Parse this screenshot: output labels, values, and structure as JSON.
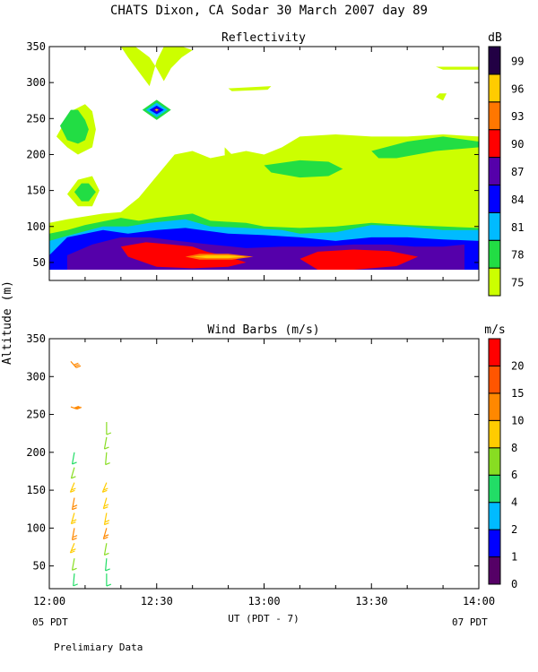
{
  "page": {
    "title": "CHATS Dixon, CA  Sodar  30 March 2007  day  89",
    "ylabel": "Altitude (m)",
    "xlabel": "UT  (PDT - 7)",
    "left_date": "05 PDT",
    "right_date": "07 PDT",
    "footnote": "Prelimiary Data"
  },
  "colors": {
    "refl_levels": [
      "#ccff00",
      "#22dd44",
      "#00bbff",
      "#0000ff",
      "#5500aa",
      "#ff0000",
      "#ff7700",
      "#ffcc00",
      "#220044"
    ],
    "wind_levels": [
      "#550066",
      "#0000ff",
      "#00bbff",
      "#22dd66",
      "#88dd22",
      "#ffcc00",
      "#ff8800",
      "#ff5500",
      "#ff0000"
    ]
  },
  "chart_data": [
    {
      "type": "heatmap",
      "title": "Reflectivity",
      "x_ticks": [
        "12:00",
        "12:30",
        "13:00",
        "13:30",
        "14:00"
      ],
      "xlim": [
        "12:00",
        "14:00"
      ],
      "y_ticks": [
        50,
        100,
        150,
        200,
        250,
        300,
        350
      ],
      "ylim": [
        25,
        350
      ],
      "colorbar": {
        "unit": "dB",
        "levels": [
          75,
          78,
          81,
          84,
          87,
          90,
          93,
          96,
          99
        ]
      },
      "contours": [
        {
          "level": 75,
          "regions": [
            {
              "t": [
                0,
                0,
                5,
                15,
                20,
                25,
                30,
                35,
                40,
                45,
                50,
                55,
                60,
                65,
                70,
                80,
                90,
                100,
                110,
                120,
                120
              ],
              "alt": [
                40,
                105,
                110,
                118,
                120,
                140,
                170,
                200,
                205,
                195,
                200,
                205,
                200,
                210,
                225,
                228,
                225,
                225,
                228,
                225,
                40
              ]
            },
            {
              "t": [
                20,
                22,
                25,
                28,
                30,
                32,
                36,
                40,
                37,
                34,
                32,
                30,
                28,
                24
              ],
              "alt": [
                350,
                335,
                315,
                295,
                330,
                350,
                352,
                345,
                335,
                320,
                302,
                320,
                335,
                350
              ]
            },
            {
              "t": [
                2,
                6,
                10,
                12,
                13,
                12,
                8,
                5
              ],
              "alt": [
                225,
                260,
                270,
                260,
                235,
                210,
                200,
                210
              ]
            },
            {
              "t": [
                5,
                8,
                12,
                14,
                12,
                8
              ],
              "alt": [
                145,
                165,
                170,
                150,
                128,
                128
              ]
            },
            {
              "t": [
                49,
                51,
                50,
                49
              ],
              "alt": [
                210,
                200,
                188,
                200
              ]
            },
            {
              "t": [
                50,
                62,
                61,
                51
              ],
              "alt": [
                292,
                295,
                290,
                288
              ]
            },
            {
              "t": [
                108,
                120,
                120,
                110
              ],
              "alt": [
                322,
                322,
                318,
                318
              ]
            },
            {
              "t": [
                109,
                111,
                110,
                108
              ],
              "alt": [
                285,
                285,
                275,
                280
              ]
            }
          ]
        },
        {
          "level": 78,
          "regions": [
            {
              "t": [
                0,
                5,
                10,
                20,
                25,
                30,
                40,
                45,
                55,
                60,
                70,
                80,
                90,
                100,
                110,
                120,
                120,
                0
              ],
              "alt": [
                90,
                95,
                102,
                112,
                108,
                112,
                118,
                108,
                105,
                100,
                98,
                100,
                105,
                102,
                100,
                98,
                40,
                40
              ]
            },
            {
              "t": [
                3,
                6,
                8,
                10,
                11,
                10,
                8,
                5
              ],
              "alt": [
                240,
                262,
                262,
                248,
                235,
                220,
                215,
                220
              ]
            },
            {
              "t": [
                7,
                9,
                11,
                13,
                11,
                9
              ],
              "alt": [
                148,
                160,
                160,
                148,
                135,
                135
              ]
            },
            {
              "t": [
                60,
                70,
                78,
                82,
                78,
                70,
                62
              ],
              "alt": [
                185,
                192,
                190,
                180,
                170,
                168,
                175
              ]
            },
            {
              "t": [
                90,
                100,
                110,
                120,
                120,
                108,
                97,
                92
              ],
              "alt": [
                205,
                218,
                225,
                218,
                210,
                205,
                195,
                195
              ]
            },
            {
              "t": [
                26,
                30,
                34,
                30
              ],
              "alt": [
                262,
                276,
                262,
                248
              ]
            }
          ]
        },
        {
          "level": 81,
          "regions": [
            {
              "t": [
                0,
                5,
                15,
                22,
                28,
                38,
                45,
                55,
                65,
                70,
                80,
                90,
                100,
                110,
                120,
                120,
                0
              ],
              "alt": [
                80,
                87,
                100,
                100,
                105,
                110,
                100,
                98,
                95,
                90,
                92,
                102,
                100,
                95,
                95,
                40,
                40
              ]
            },
            {
              "t": [
                27,
                30,
                33,
                30
              ],
              "alt": [
                262,
                272,
                262,
                252
              ]
            }
          ]
        },
        {
          "level": 84,
          "regions": [
            {
              "t": [
                0,
                5,
                15,
                22,
                30,
                38,
                50,
                60,
                70,
                80,
                90,
                100,
                110,
                120,
                120,
                0
              ],
              "alt": [
                60,
                85,
                95,
                90,
                95,
                98,
                90,
                88,
                85,
                80,
                85,
                85,
                82,
                80,
                40,
                40
              ]
            },
            {
              "t": [
                28,
                30,
                32,
                30
              ],
              "alt": [
                262,
                268,
                262,
                256
              ]
            }
          ]
        },
        {
          "level": 87,
          "regions": [
            {
              "t": [
                5,
                12,
                20,
                28,
                36,
                45,
                55,
                65,
                75,
                85,
                95,
                102,
                110,
                116,
                116,
                5
              ],
              "alt": [
                60,
                75,
                85,
                85,
                80,
                75,
                70,
                72,
                72,
                75,
                75,
                72,
                72,
                75,
                40,
                40
              ]
            },
            {
              "t": [
                29,
                30,
                31,
                30
              ],
              "alt": [
                262,
                265,
                262,
                259
              ]
            }
          ]
        },
        {
          "level": 90,
          "regions": [
            {
              "t": [
                20,
                27,
                34,
                40,
                44,
                50,
                55,
                50,
                40,
                30,
                22
              ],
              "alt": [
                72,
                78,
                75,
                72,
                65,
                58,
                50,
                44,
                42,
                44,
                58
              ]
            },
            {
              "t": [
                70,
                75,
                85,
                95,
                103,
                97,
                85,
                75
              ],
              "alt": [
                55,
                65,
                68,
                66,
                58,
                45,
                40,
                40
              ]
            }
          ]
        },
        {
          "level": 93,
          "regions": [
            {
              "t": [
                38,
                42,
                50,
                57,
                51,
                42
              ],
              "alt": [
                58,
                62,
                62,
                58,
                54,
                54
              ]
            }
          ]
        },
        {
          "level": 96,
          "regions": [
            {
              "t": [
                40,
                44,
                50,
                55,
                50,
                44
              ],
              "alt": [
                58,
                60,
                60,
                58,
                56,
                56
              ]
            },
            {
              "t": [
                29.5,
                30,
                30.5,
                30
              ],
              "alt": [
                262,
                263.5,
                262,
                260.5
              ]
            }
          ]
        }
      ]
    },
    {
      "type": "scatter",
      "title": "Wind Barbs (m/s)",
      "x_ticks": [
        "12:00",
        "12:30",
        "13:00",
        "13:30",
        "14:00"
      ],
      "xlim": [
        "12:00",
        "14:00"
      ],
      "y_ticks": [
        50,
        100,
        150,
        200,
        250,
        300,
        350
      ],
      "ylim": [
        20,
        350
      ],
      "colorbar": {
        "unit": "m/s",
        "levels": [
          0,
          1,
          2,
          4,
          6,
          8,
          10,
          15,
          20
        ]
      },
      "barbs": [
        {
          "t": 6,
          "alt": 320,
          "speed": 14,
          "dir": 120
        },
        {
          "t": 6,
          "alt": 260,
          "speed": 13,
          "dir": 100
        },
        {
          "t": 7,
          "alt": 200,
          "speed": 5,
          "dir": 200
        },
        {
          "t": 7,
          "alt": 180,
          "speed": 6,
          "dir": 210
        },
        {
          "t": 7,
          "alt": 160,
          "speed": 8,
          "dir": 220
        },
        {
          "t": 7,
          "alt": 140,
          "speed": 10,
          "dir": 200
        },
        {
          "t": 7,
          "alt": 120,
          "speed": 9,
          "dir": 210
        },
        {
          "t": 7,
          "alt": 100,
          "speed": 10,
          "dir": 200
        },
        {
          "t": 7,
          "alt": 80,
          "speed": 8,
          "dir": 220
        },
        {
          "t": 7,
          "alt": 60,
          "speed": 6,
          "dir": 200
        },
        {
          "t": 7,
          "alt": 40,
          "speed": 4,
          "dir": 190
        },
        {
          "t": 16,
          "alt": 240,
          "speed": 6,
          "dir": 180
        },
        {
          "t": 16,
          "alt": 220,
          "speed": 6,
          "dir": 200
        },
        {
          "t": 16,
          "alt": 200,
          "speed": 7,
          "dir": 190
        },
        {
          "t": 16,
          "alt": 160,
          "speed": 8,
          "dir": 220
        },
        {
          "t": 16,
          "alt": 140,
          "speed": 9,
          "dir": 210
        },
        {
          "t": 16,
          "alt": 120,
          "speed": 9,
          "dir": 200
        },
        {
          "t": 16,
          "alt": 100,
          "speed": 10,
          "dir": 210
        },
        {
          "t": 16,
          "alt": 80,
          "speed": 7,
          "dir": 200
        },
        {
          "t": 16,
          "alt": 60,
          "speed": 5,
          "dir": 190
        },
        {
          "t": 16,
          "alt": 40,
          "speed": 4,
          "dir": 180
        }
      ]
    }
  ]
}
